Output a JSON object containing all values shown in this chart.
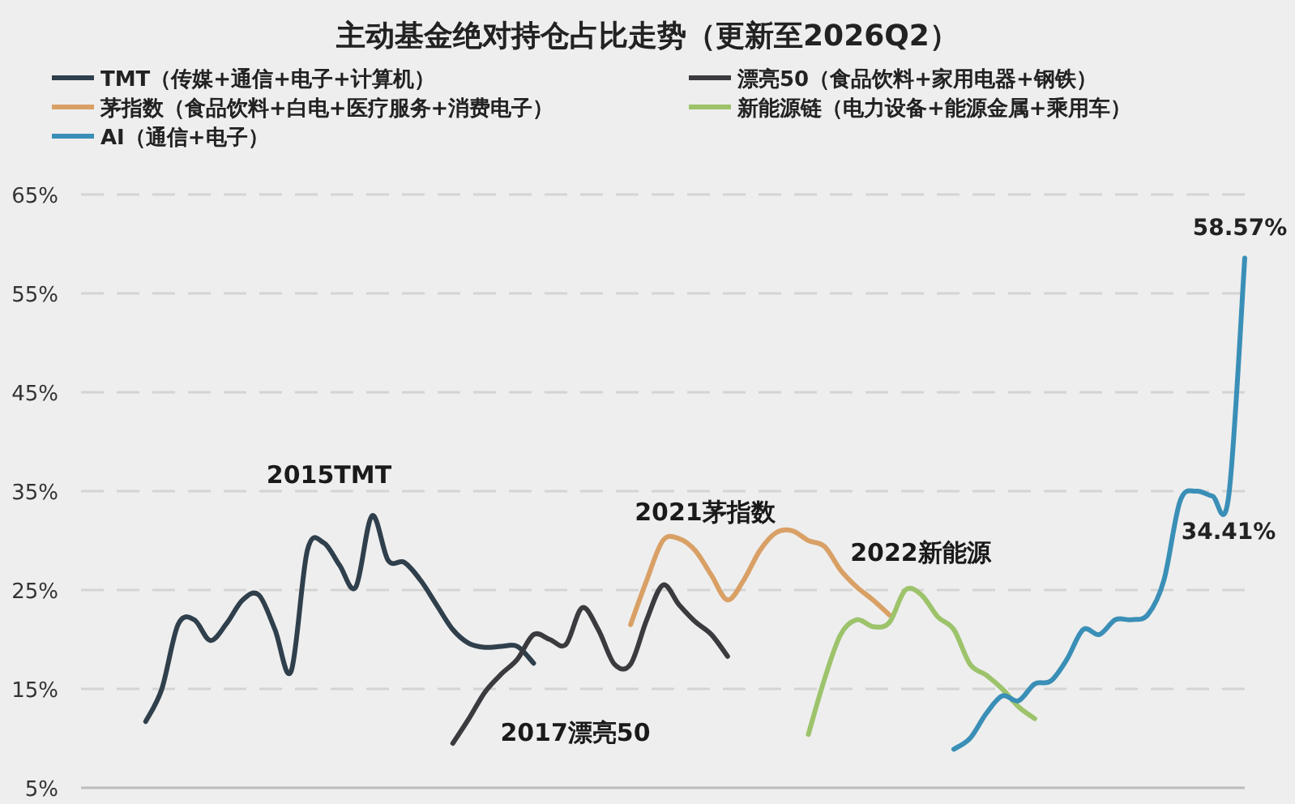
{
  "chart_data": {
    "type": "line",
    "title": "主动基金绝对持仓占比走势（更新至2026Q2）",
    "categories": [
      null,
      null,
      null,
      null,
      null,
      null,
      null,
      null,
      null,
      null,
      null,
      null,
      null,
      null,
      null,
      null,
      null,
      null,
      null,
      null,
      null,
      null,
      null,
      null,
      null,
      null,
      null,
      null,
      null,
      null,
      null,
      null,
      null,
      null,
      null,
      null,
      null,
      null,
      null,
      null,
      null,
      null,
      null,
      null,
      null,
      null,
      null,
      null,
      null,
      null,
      null,
      null,
      null,
      null,
      null,
      null,
      null,
      null,
      null,
      null,
      null,
      null,
      null,
      null,
      null,
      null,
      null,
      null,
      null,
      null,
      null,
      null,
      null
    ],
    "series": [
      {
        "name": "TMT（传媒+通信+电子+计算机）",
        "color": "#2f3f4c",
        "values": [
          null,
          null,
          null,
          null,
          11.7,
          15.0,
          21.5,
          22.0,
          19.9,
          21.6,
          24.0,
          24.5,
          21.0,
          16.8,
          29.0,
          29.8,
          27.5,
          25.3,
          32.5,
          28.0,
          27.8,
          26.0,
          23.5,
          21.0,
          19.6,
          19.2,
          19.3,
          19.3,
          17.6,
          null,
          null,
          null,
          null,
          null,
          null,
          null,
          null,
          null,
          null,
          null,
          null,
          null,
          null,
          null,
          null,
          null,
          null,
          null,
          null,
          null,
          null,
          null,
          null,
          null,
          null,
          null,
          null,
          null,
          null,
          null,
          null,
          null,
          null,
          null,
          null,
          null,
          null,
          null,
          null,
          null,
          null,
          null,
          null
        ]
      },
      {
        "name": "漂亮50（食品饮料+家用电器+钢铁）",
        "color": "#3b3b3f",
        "values": [
          null,
          null,
          null,
          null,
          null,
          null,
          null,
          null,
          null,
          null,
          null,
          null,
          null,
          null,
          null,
          null,
          null,
          null,
          null,
          null,
          null,
          null,
          null,
          9.5,
          12.0,
          14.7,
          16.5,
          18.0,
          20.5,
          20.0,
          19.5,
          23.2,
          21.0,
          17.5,
          17.5,
          22.0,
          25.5,
          23.5,
          21.8,
          20.5,
          18.3,
          null,
          null,
          null,
          null,
          null,
          null,
          null,
          null,
          null,
          null,
          null,
          null,
          null,
          null,
          null,
          null,
          null,
          null,
          null,
          null,
          null,
          null,
          null,
          null,
          null,
          null,
          null,
          null,
          null,
          null,
          null,
          null
        ]
      },
      {
        "name": "茅指数（食品饮料+白电+医疗服务+消费电子）",
        "color": "#d9a066",
        "values": [
          null,
          null,
          null,
          null,
          null,
          null,
          null,
          null,
          null,
          null,
          null,
          null,
          null,
          null,
          null,
          null,
          null,
          null,
          null,
          null,
          null,
          null,
          null,
          null,
          null,
          null,
          null,
          null,
          null,
          null,
          null,
          null,
          null,
          null,
          21.5,
          26.0,
          30.0,
          30.2,
          29.0,
          26.5,
          24.0,
          26.0,
          29.0,
          30.8,
          31.0,
          30.0,
          29.4,
          27.0,
          25.3,
          24.0,
          22.5,
          null,
          null,
          null,
          null,
          null,
          null,
          null,
          null,
          null,
          null,
          null,
          null,
          null,
          null,
          null,
          null,
          null,
          null,
          null,
          null,
          null,
          null
        ]
      },
      {
        "name": "新能源链（电力设备+能源金属+乘用车）",
        "color": "#9dc36b",
        "values": [
          null,
          null,
          null,
          null,
          null,
          null,
          null,
          null,
          null,
          null,
          null,
          null,
          null,
          null,
          null,
          null,
          null,
          null,
          null,
          null,
          null,
          null,
          null,
          null,
          null,
          null,
          null,
          null,
          null,
          null,
          null,
          null,
          null,
          null,
          null,
          null,
          null,
          null,
          null,
          null,
          null,
          null,
          null,
          null,
          null,
          10.4,
          16.0,
          20.5,
          22.0,
          21.3,
          21.7,
          25.0,
          24.5,
          22.3,
          21.0,
          17.5,
          16.4,
          15.0,
          13.2,
          12.0,
          null,
          null,
          null,
          null,
          null,
          null,
          null,
          null,
          null,
          null,
          null,
          null,
          null
        ]
      },
      {
        "name": "AI（通信+电子）",
        "color": "#3a8fb7",
        "values": [
          null,
          null,
          null,
          null,
          null,
          null,
          null,
          null,
          null,
          null,
          null,
          null,
          null,
          null,
          null,
          null,
          null,
          null,
          null,
          null,
          null,
          null,
          null,
          null,
          null,
          null,
          null,
          null,
          null,
          null,
          null,
          null,
          null,
          null,
          null,
          null,
          null,
          null,
          null,
          null,
          null,
          null,
          null,
          null,
          null,
          null,
          null,
          null,
          null,
          null,
          null,
          null,
          null,
          null,
          8.9,
          10.0,
          12.5,
          14.3,
          13.8,
          15.5,
          15.8,
          18.0,
          21.0,
          20.5,
          22.0,
          22.0,
          22.5,
          26.0,
          34.0,
          35.0,
          34.5,
          34.41,
          58.57
        ],
        "value_labels": [
          null,
          null,
          null,
          null,
          null,
          null,
          null,
          null,
          null,
          null,
          null,
          null,
          null,
          null,
          null,
          null,
          null,
          null,
          null,
          null,
          null,
          null,
          null,
          null,
          null,
          null,
          null,
          null,
          null,
          null,
          null,
          null,
          null,
          null,
          null,
          null,
          null,
          null,
          null,
          null,
          null,
          null,
          null,
          null,
          null,
          null,
          null,
          null,
          null,
          null,
          null,
          null,
          null,
          null,
          null,
          null,
          null,
          null,
          null,
          null,
          null,
          null,
          null,
          null,
          null,
          null,
          null,
          null,
          null,
          null,
          null,
          "34.41%",
          "58.57%"
        ]
      }
    ],
    "annotations": [
      "2015TMT",
      "2017漂亮50",
      "2021茅指数",
      "2022新能源"
    ],
    "ylim": [
      5,
      65
    ],
    "yticks": [
      {
        "value": 5,
        "label": "5%"
      },
      {
        "value": 15,
        "label": "15%"
      },
      {
        "value": 25,
        "label": "25%"
      },
      {
        "value": 35,
        "label": "35%"
      },
      {
        "value": 45,
        "label": "45%"
      },
      {
        "value": 55,
        "label": "55%"
      },
      {
        "value": 65,
        "label": "65%"
      }
    ],
    "grid": "y",
    "legend": "top",
    "line_style": "solid",
    "marker": "none"
  }
}
